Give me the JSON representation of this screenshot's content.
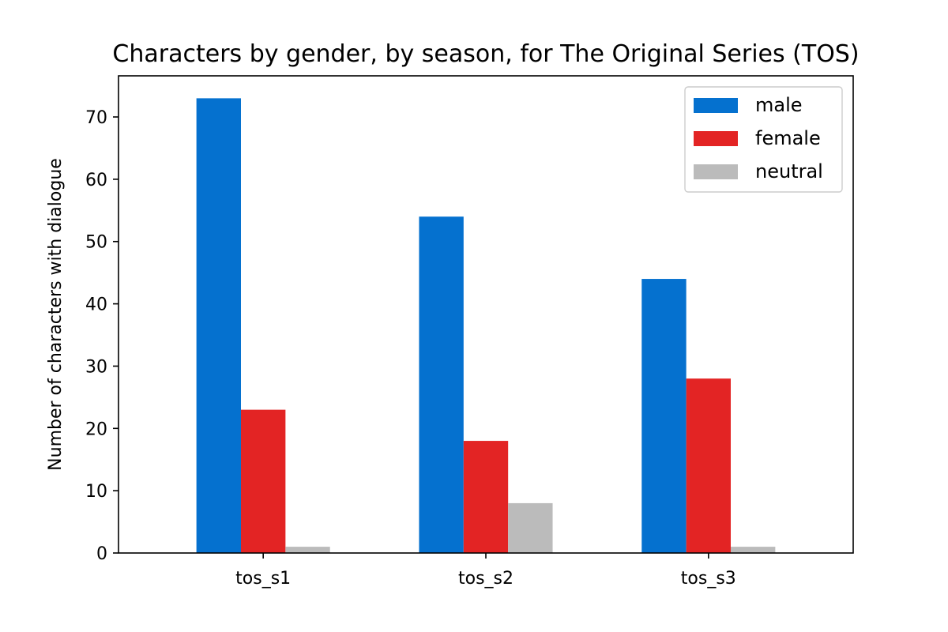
{
  "chart_data": {
    "type": "bar",
    "title": "Characters by gender, by season, for The Original Series (TOS)",
    "xlabel": "",
    "ylabel": "Number of characters with dialogue",
    "categories": [
      "tos_s1",
      "tos_s2",
      "tos_s3"
    ],
    "series": [
      {
        "name": "male",
        "values": [
          73,
          54,
          44
        ],
        "color": "#0571cf"
      },
      {
        "name": "female",
        "values": [
          23,
          18,
          28
        ],
        "color": "#e32424"
      },
      {
        "name": "neutral",
        "values": [
          1,
          8,
          1
        ],
        "color": "#bbbbbb"
      }
    ],
    "ylim": [
      0,
      76.6
    ],
    "yticks": [
      "0",
      "10",
      "20",
      "30",
      "40",
      "50",
      "60",
      "70"
    ],
    "grid": false,
    "legend_position": "top-right"
  }
}
